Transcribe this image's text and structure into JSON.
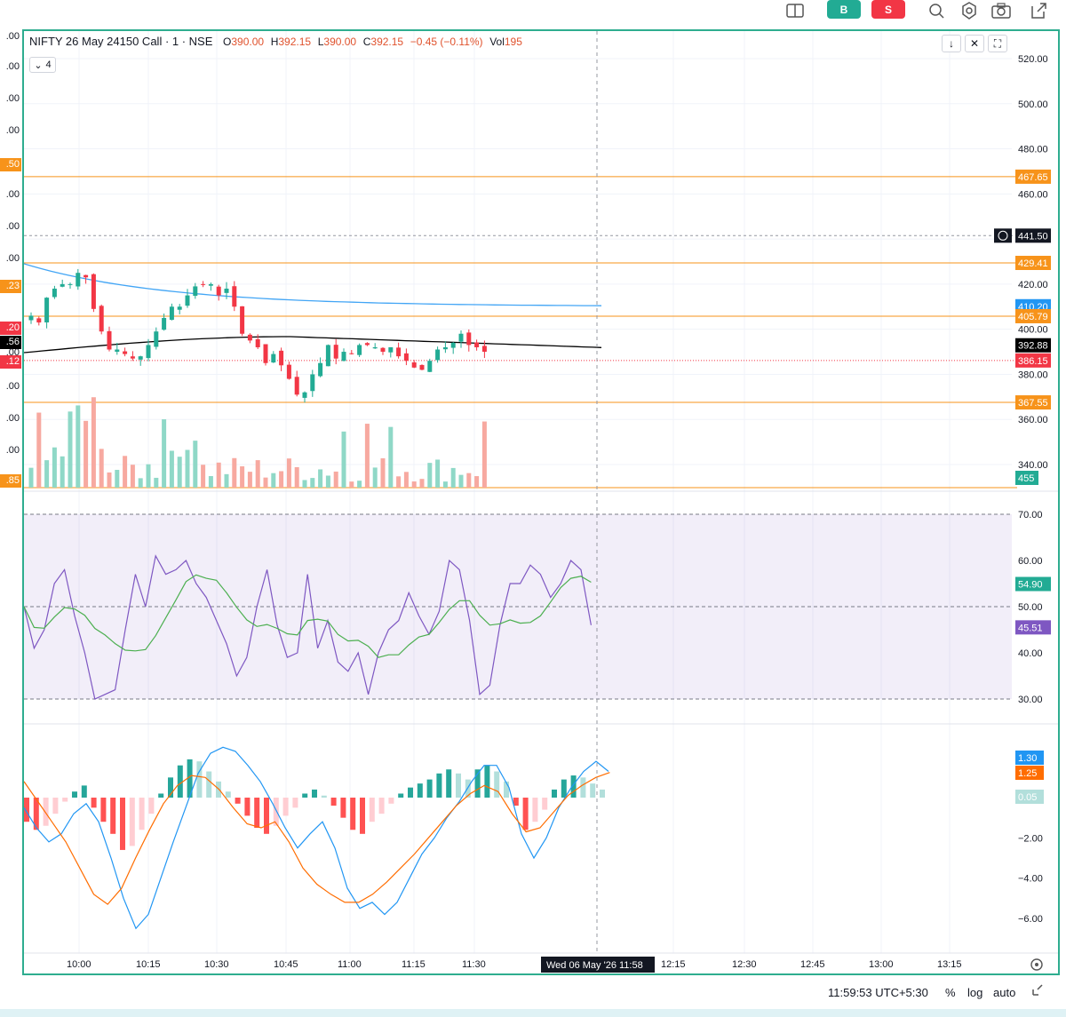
{
  "toolbar": {
    "buy_label": "B",
    "sell_label": "S",
    "buy_color": "#22ab94",
    "sell_color": "#f23645",
    "icons": [
      "layout-icon",
      "alert-icon",
      "settings-icon",
      "camera-icon",
      "external-link-icon"
    ]
  },
  "legend": {
    "symbol": "NIFTY 26 May 24150 Call · 1 · NSE",
    "open_key": "O",
    "open": "390.00",
    "high_key": "H",
    "high": "392.15",
    "low_key": "L",
    "low": "390.00",
    "close_key": "C",
    "close": "392.15",
    "change": "−0.45 (−0.11%)",
    "vol_key": "Vol",
    "vol": "195",
    "indicators_count": "4"
  },
  "left_scale": {
    "labels": [
      ".00",
      ".00",
      ".00",
      ".00",
      ".50",
      ".00",
      ".00",
      ".00",
      ".23",
      ".20",
      ".56",
      ".00",
      ".12",
      ".00",
      ".00",
      ".00",
      ".85"
    ]
  },
  "price_axis": {
    "ticks": [
      "520.00",
      "500.00",
      "480.00",
      "460.00",
      "420.00",
      "400.00",
      "380.00",
      "360.00",
      "340.00"
    ],
    "tags": [
      {
        "value": "467.65",
        "color": "#f7931a"
      },
      {
        "value": "441.50",
        "color": "#131722"
      },
      {
        "value": "429.41",
        "color": "#f7931a"
      },
      {
        "value": "410.20",
        "color": "#2196f3"
      },
      {
        "value": "405.79",
        "color": "#f7931a"
      },
      {
        "value": "392.88",
        "color": "#000000"
      },
      {
        "value": "386.15",
        "color": "#f23645"
      },
      {
        "value": "367.55",
        "color": "#f7931a"
      },
      {
        "value": "455",
        "color": "#22ab94"
      }
    ]
  },
  "rsi_axis": {
    "ticks": [
      "70.00",
      "60.00",
      "50.00",
      "40.00",
      "30.00"
    ],
    "tags": [
      {
        "value": "54.90",
        "color": "#22ab94"
      },
      {
        "value": "45.51",
        "color": "#7e57c2"
      }
    ]
  },
  "macd_axis": {
    "ticks": [
      "−2.00",
      "−4.00",
      "−6.00"
    ],
    "tags": [
      {
        "value": "1.30",
        "color": "#2196f3"
      },
      {
        "value": "1.25",
        "color": "#ff6d00"
      },
      {
        "value": "0.05",
        "color": "#b2dfdb"
      }
    ]
  },
  "time_axis": {
    "ticks": [
      "10:00",
      "10:15",
      "10:30",
      "10:45",
      "11:00",
      "11:15",
      "11:30",
      "12:15",
      "12:30",
      "12:45",
      "13:00",
      "13:15"
    ],
    "crosshair_label": "Wed 06 May '26   11:58"
  },
  "status_bar": {
    "clock": "11:59:53 UTC+5:30",
    "percent": "%",
    "log": "log",
    "auto": "auto"
  },
  "colors": {
    "up": "#22ab94",
    "down": "#f23645",
    "frame": "#2ead8f",
    "level": "#f7931a"
  }
}
